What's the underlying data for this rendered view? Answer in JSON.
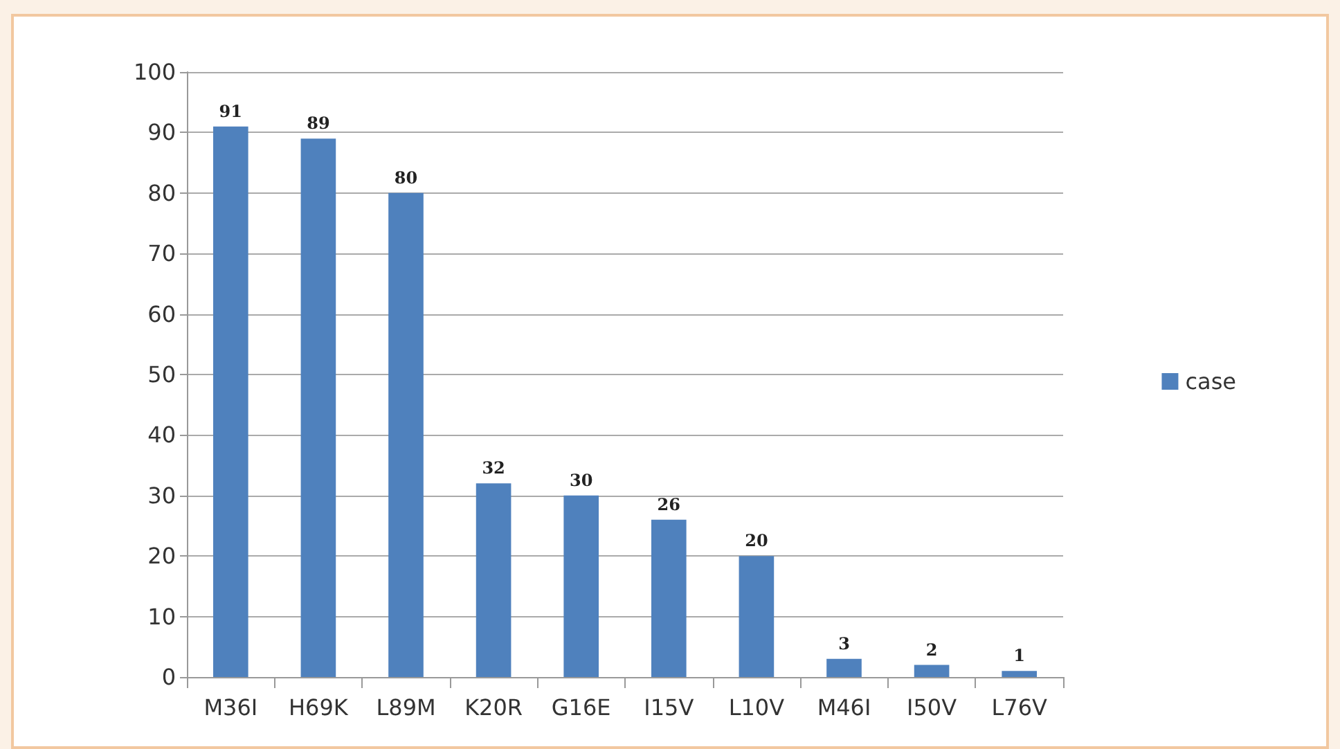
{
  "chart_data": {
    "type": "bar",
    "categories": [
      "M36I",
      "H69K",
      "L89M",
      "K20R",
      "G16E",
      "I15V",
      "L10V",
      "M46I",
      "I50V",
      "L76V"
    ],
    "series": [
      {
        "name": "case",
        "color": "#4f81bd",
        "values": [
          91,
          89,
          80,
          32,
          30,
          26,
          20,
          3,
          2,
          1
        ]
      }
    ],
    "ylim": [
      0,
      100
    ],
    "yticks": [
      0,
      10,
      20,
      30,
      40,
      50,
      60,
      70,
      80,
      90,
      100
    ],
    "grid": "y",
    "legend": "right",
    "data_labels": true
  }
}
